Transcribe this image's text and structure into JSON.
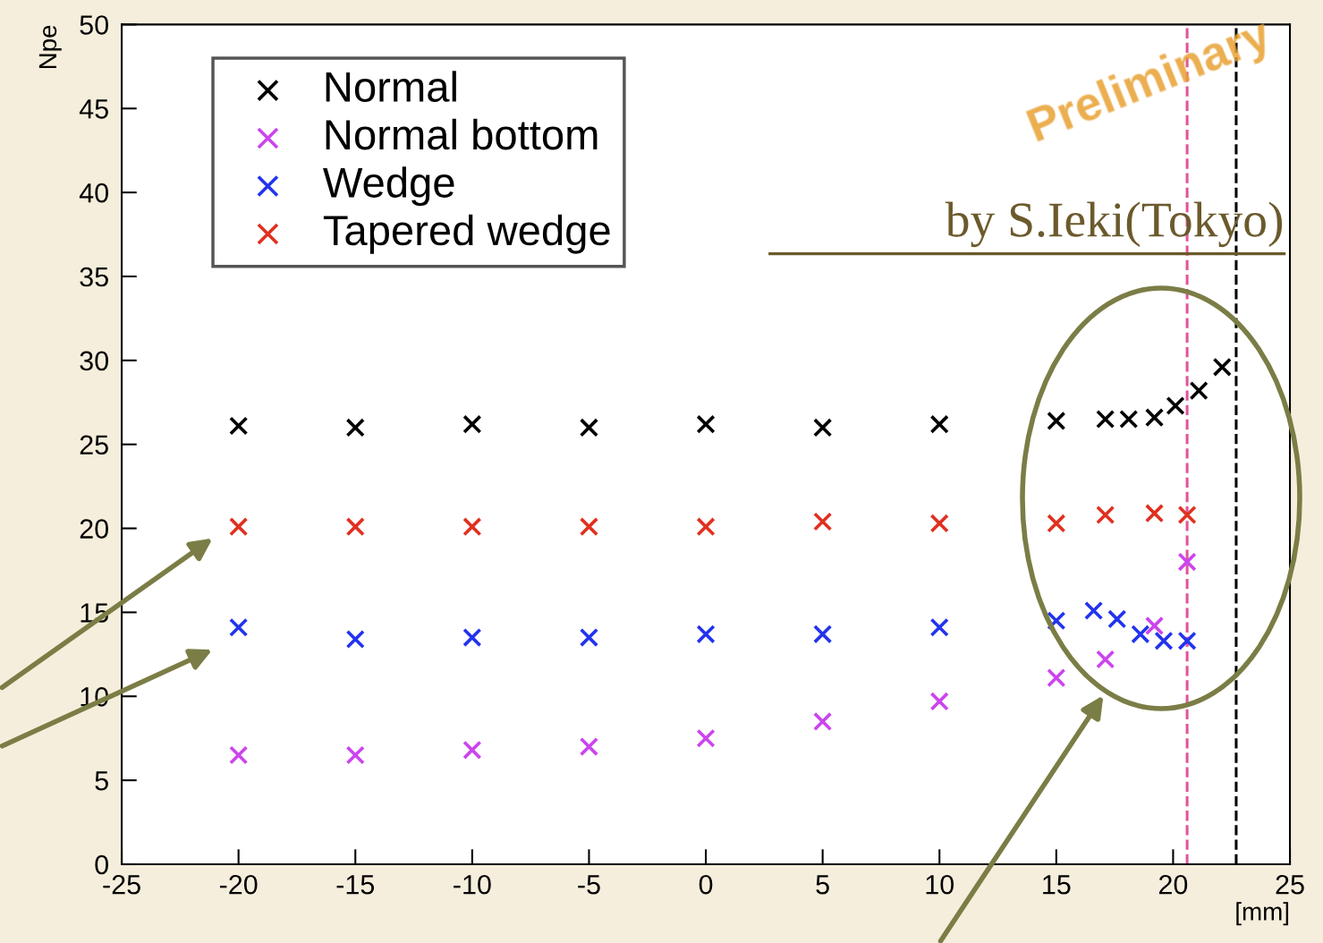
{
  "chart_data": {
    "type": "scatter",
    "xlabel": "[mm]",
    "ylabel": "Npe",
    "xlim": [
      -25,
      25
    ],
    "xticks": [
      -25,
      -20,
      -15,
      -10,
      -5,
      0,
      5,
      10,
      15,
      20,
      25
    ],
    "ylim": [
      0,
      50
    ],
    "yticks": [
      0,
      5,
      10,
      15,
      20,
      25,
      30,
      35,
      40,
      45,
      50
    ],
    "marker": "cross",
    "legend": "top left",
    "grid": false,
    "series": [
      {
        "name": "Normal",
        "color": "#000000",
        "x": [
          -20,
          -15,
          -10,
          -5,
          0,
          5,
          10,
          15,
          17.1,
          18.1,
          19.2,
          20.1,
          21.1,
          22.1
        ],
        "values": [
          26.1,
          26.0,
          26.2,
          26.0,
          26.2,
          26.0,
          26.2,
          26.4,
          26.5,
          26.5,
          26.6,
          27.3,
          28.2,
          29.6
        ]
      },
      {
        "name": "Normal bottom",
        "color": "#cc44ee",
        "x": [
          -20,
          -15,
          -10,
          -5,
          0,
          5,
          10,
          15,
          17.1,
          19.2,
          20.6
        ],
        "values": [
          6.5,
          6.5,
          6.8,
          7.0,
          7.5,
          8.5,
          9.7,
          11.1,
          12.2,
          14.2,
          18.0
        ]
      },
      {
        "name": "Wedge",
        "color": "#2233ee",
        "x": [
          -20,
          -15,
          -10,
          -5,
          0,
          5,
          10,
          15,
          16.6,
          17.6,
          18.6,
          19.6,
          20.6
        ],
        "values": [
          14.1,
          13.4,
          13.5,
          13.5,
          13.7,
          13.7,
          14.1,
          14.5,
          15.1,
          14.6,
          13.7,
          13.3,
          13.3
        ]
      },
      {
        "name": "Tapered wedge",
        "color": "#e03020",
        "x": [
          -20,
          -15,
          -10,
          -5,
          0,
          5,
          10,
          15,
          17.1,
          19.2,
          20.6
        ],
        "values": [
          20.1,
          20.1,
          20.1,
          20.1,
          20.1,
          20.4,
          20.3,
          20.3,
          20.8,
          20.9,
          20.8
        ]
      }
    ],
    "ref_lines": [
      {
        "axis": "x",
        "value": 22.7,
        "color": "#000000",
        "line_style": "dashed"
      },
      {
        "axis": "x",
        "value": 20.6,
        "color": "#e0559a",
        "line_style": "dashed"
      }
    ],
    "annotations": [
      "Preliminary",
      "by S.Ieki(Tokyo)"
    ]
  }
}
